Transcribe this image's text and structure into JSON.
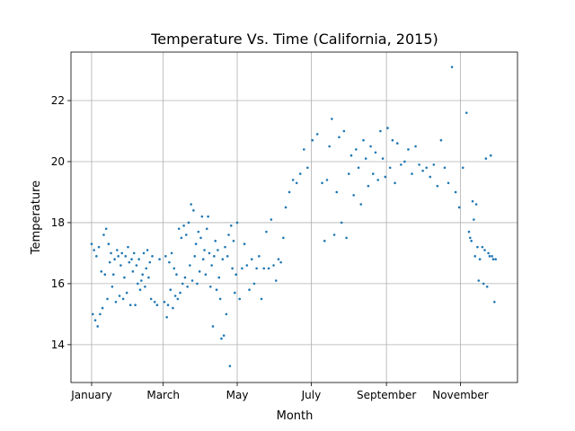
{
  "chart_data": {
    "type": "scatter",
    "title": "Temperature Vs. Time (California, 2015)",
    "x_label": "Month",
    "y_label": "Temperature",
    "color": "#1f77b4",
    "grid": true,
    "xlim": [
      -17,
      351
    ],
    "ylim": [
      12.76,
      23.59
    ],
    "xticks": [
      {
        "value": 0,
        "label": "January"
      },
      {
        "value": 59,
        "label": "March"
      },
      {
        "value": 120,
        "label": "May"
      },
      {
        "value": 181,
        "label": "July"
      },
      {
        "value": 243,
        "label": "September"
      },
      {
        "value": 304,
        "label": "November"
      }
    ],
    "yticks": [
      14,
      16,
      18,
      20,
      22
    ],
    "x": [
      0,
      1,
      2,
      3,
      4,
      5,
      6,
      7,
      8,
      9,
      10,
      11,
      12,
      13,
      14,
      15,
      16,
      17,
      18,
      19,
      20,
      21,
      22,
      23,
      24,
      25,
      26,
      27,
      28,
      29,
      30,
      31,
      32,
      33,
      34,
      35,
      36,
      37,
      38,
      39,
      40,
      41,
      42,
      43,
      44,
      45,
      46,
      47,
      48,
      49,
      50,
      52,
      54,
      56,
      60,
      61,
      62,
      63,
      64,
      65,
      66,
      67,
      68,
      69,
      70,
      71,
      72,
      73,
      74,
      75,
      76,
      77,
      78,
      79,
      80,
      81,
      82,
      83,
      84,
      85,
      86,
      87,
      88,
      89,
      90,
      91,
      92,
      93,
      94,
      95,
      96,
      97,
      98,
      99,
      100,
      101,
      102,
      103,
      104,
      105,
      106,
      107,
      108,
      109,
      110,
      111,
      112,
      113,
      114,
      115,
      116,
      117,
      118,
      119,
      120,
      122,
      124,
      126,
      128,
      130,
      132,
      134,
      136,
      138,
      140,
      142,
      144,
      146,
      148,
      150,
      152,
      154,
      156,
      158,
      160,
      163,
      166,
      169,
      172,
      175,
      178,
      182,
      186,
      190,
      192,
      194,
      196,
      198,
      200,
      202,
      204,
      206,
      208,
      210,
      212,
      214,
      216,
      218,
      220,
      222,
      224,
      226,
      228,
      230,
      232,
      234,
      236,
      238,
      240,
      242,
      244,
      246,
      248,
      250,
      252,
      255,
      258,
      261,
      264,
      267,
      270,
      273,
      276,
      279,
      282,
      285,
      288,
      291,
      294,
      297,
      300,
      303,
      306,
      309,
      311,
      312,
      313,
      314,
      315,
      316,
      317,
      318,
      319,
      320,
      322,
      323,
      324,
      325,
      326,
      327,
      328,
      329,
      330,
      331,
      332,
      333
    ],
    "y": [
      17.3,
      15.0,
      17.1,
      14.8,
      16.9,
      14.6,
      17.2,
      15.0,
      16.4,
      15.2,
      17.6,
      16.3,
      17.8,
      15.5,
      17.3,
      16.7,
      17.0,
      15.9,
      16.3,
      16.8,
      15.4,
      17.1,
      16.9,
      15.6,
      16.6,
      17.0,
      15.5,
      16.2,
      16.9,
      15.7,
      17.2,
      16.7,
      15.3,
      16.8,
      16.4,
      17.0,
      15.3,
      16.6,
      16.0,
      16.8,
      15.8,
      16.1,
      16.3,
      17.0,
      15.9,
      16.5,
      17.1,
      16.2,
      16.7,
      15.5,
      16.9,
      15.4,
      15.3,
      16.8,
      15.4,
      16.9,
      14.9,
      15.3,
      16.7,
      15.8,
      17.0,
      15.2,
      16.5,
      15.6,
      16.3,
      15.5,
      17.8,
      15.7,
      17.5,
      16.0,
      17.9,
      16.2,
      17.6,
      15.9,
      18.0,
      16.6,
      18.6,
      16.1,
      18.4,
      16.9,
      17.3,
      16.0,
      17.7,
      16.4,
      17.5,
      18.2,
      16.8,
      17.1,
      16.3,
      17.8,
      18.2,
      17.0,
      15.9,
      16.6,
      14.6,
      16.9,
      17.4,
      15.8,
      17.1,
      16.2,
      15.5,
      14.2,
      16.8,
      14.3,
      17.2,
      15.0,
      16.9,
      17.6,
      13.3,
      17.9,
      16.5,
      17.4,
      15.7,
      16.3,
      18.0,
      15.5,
      16.5,
      17.3,
      16.6,
      15.8,
      16.8,
      16.0,
      16.5,
      16.9,
      15.5,
      16.5,
      17.7,
      16.5,
      18.1,
      16.6,
      16.1,
      16.8,
      16.7,
      17.5,
      18.5,
      19.0,
      19.4,
      19.3,
      19.6,
      20.4,
      19.8,
      20.7,
      20.9,
      19.3,
      17.4,
      19.4,
      20.5,
      21.4,
      17.6,
      19.0,
      20.8,
      18.0,
      21.0,
      17.5,
      19.6,
      20.2,
      18.9,
      20.4,
      19.8,
      18.6,
      20.7,
      20.1,
      19.2,
      20.5,
      19.6,
      20.3,
      19.4,
      21.0,
      20.1,
      19.5,
      21.1,
      19.8,
      20.7,
      19.3,
      20.6,
      19.9,
      20.0,
      20.4,
      19.6,
      20.5,
      19.9,
      19.7,
      19.8,
      19.5,
      19.9,
      19.2,
      20.7,
      19.8,
      19.3,
      23.1,
      19.0,
      18.5,
      19.8,
      21.6,
      17.7,
      17.5,
      17.4,
      18.7,
      18.1,
      16.9,
      18.6,
      17.2,
      16.1,
      16.8,
      17.2,
      16.0,
      17.1,
      20.1,
      15.9,
      17.0,
      16.9,
      20.2,
      16.9,
      16.8,
      15.4,
      16.8
    ]
  }
}
